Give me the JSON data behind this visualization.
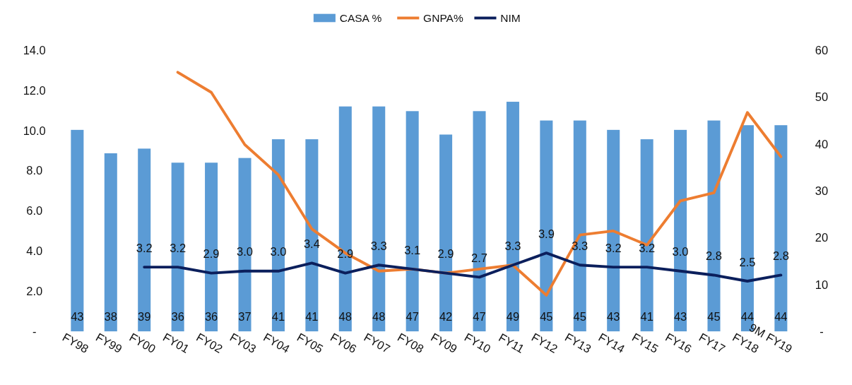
{
  "chart_data": {
    "type": "bar",
    "categories": [
      "FY98",
      "FY99",
      "FY00",
      "FY01",
      "FY02",
      "FY03",
      "FY04",
      "FY05",
      "FY06",
      "FY07",
      "FY08",
      "FY09",
      "FY10",
      "FY11",
      "FY12",
      "FY13",
      "FY14",
      "FY15",
      "FY16",
      "FY17",
      "FY18",
      "9M FY19"
    ],
    "series": [
      {
        "name": "CASA %",
        "axis": "y2",
        "color": "#5b9bd5",
        "values": [
          43,
          38,
          39,
          36,
          36,
          37,
          41,
          41,
          48,
          48,
          47,
          42,
          47,
          49,
          45,
          45,
          43,
          41,
          43,
          45,
          44,
          44
        ],
        "value_labels": [
          "43",
          "38",
          "39",
          "36",
          "36",
          "37",
          "41",
          "41",
          "48",
          "48",
          "47",
          "42",
          "47",
          "49",
          "45",
          "45",
          "43",
          "41",
          "43",
          "45",
          "44",
          "44"
        ]
      },
      {
        "name": "GNPA%",
        "type": "line",
        "color": "#ed7d31",
        "values": [
          null,
          null,
          null,
          12.9,
          11.9,
          9.3,
          7.8,
          5.1,
          3.9,
          3.0,
          3.1,
          2.9,
          3.1,
          3.3,
          1.8,
          4.8,
          5.0,
          4.3,
          6.5,
          6.9,
          10.9,
          8.7
        ]
      },
      {
        "name": "NIM",
        "type": "line",
        "color": "#0b1f5c",
        "values": [
          null,
          null,
          3.2,
          3.2,
          2.9,
          3.0,
          3.0,
          3.4,
          2.9,
          3.3,
          3.1,
          2.9,
          2.7,
          3.3,
          3.9,
          3.3,
          3.2,
          3.2,
          3.0,
          2.8,
          2.5,
          2.8
        ],
        "value_labels": [
          null,
          null,
          "3.2",
          "3.2",
          "2.9",
          "3.0",
          "3.0",
          "3.4",
          "2.9",
          "3.3",
          "3.1",
          "2.9",
          "2.7",
          "3.3",
          "3.9",
          "3.3",
          "3.2",
          "3.2",
          "3.0",
          "2.8",
          "2.5",
          "2.8"
        ]
      }
    ],
    "ylim": [
      0,
      14
    ],
    "yticks": [
      {
        "value": 0,
        "label": "-"
      },
      {
        "value": 2,
        "label": "2.0"
      },
      {
        "value": 4,
        "label": "4.0"
      },
      {
        "value": 6,
        "label": "6.0"
      },
      {
        "value": 8,
        "label": "8.0"
      },
      {
        "value": 10,
        "label": "10.0"
      },
      {
        "value": 12,
        "label": "12.0"
      },
      {
        "value": 14,
        "label": "14.0"
      }
    ],
    "y2lim": [
      0,
      60
    ],
    "y2ticks": [
      {
        "value": 0,
        "label": "-"
      },
      10,
      20,
      30,
      40,
      50,
      60
    ],
    "grid": false,
    "legend": "top"
  }
}
